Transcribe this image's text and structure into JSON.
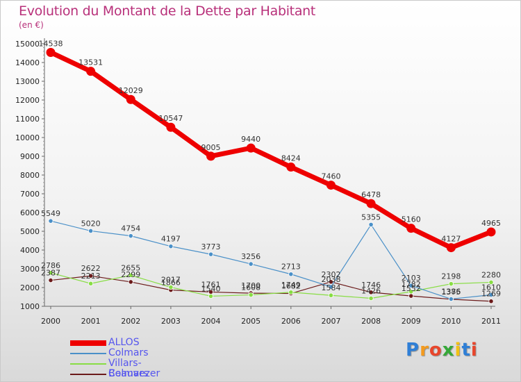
{
  "chart_data": {
    "type": "line",
    "title": "Evolution du Montant de la Dette par Habitant",
    "subtitle": "(en €)",
    "x": [
      "2000",
      "2001",
      "2002",
      "2003",
      "2004",
      "2005",
      "2006",
      "2007",
      "2008",
      "2009",
      "2010",
      "2011"
    ],
    "ylim": [
      1000,
      15000
    ],
    "yticks": [
      1000,
      2000,
      3000,
      4000,
      5000,
      6000,
      7000,
      8000,
      9000,
      10000,
      11000,
      12000,
      13000,
      14000,
      15000
    ],
    "grid": false,
    "legend_position": "bottom-left",
    "series": [
      {
        "name": "ALLOS",
        "color": "#ee0000",
        "values": [
          14538,
          13531,
          12029,
          10547,
          9005,
          9440,
          8424,
          7460,
          6478,
          5160,
          4127,
          4965
        ],
        "labels": [
          "14538",
          "13531",
          "12029",
          "10547",
          "9005",
          "9440",
          "8424",
          "7460",
          "6478",
          "5160",
          "4127",
          "4965"
        ]
      },
      {
        "name": "Colmars",
        "color": "#4a90c8",
        "values": [
          5549,
          5020,
          4754,
          4197,
          3773,
          3256,
          2713,
          2038,
          5355,
          2103,
          1386,
          1610
        ],
        "labels": [
          "5549",
          "5020",
          "4754",
          "4197",
          "3773",
          "3256",
          "2713",
          "2038",
          "5355",
          "2103",
          "1386",
          "1610"
        ]
      },
      {
        "name": "Villars-Colmars",
        "color": "#88dd44",
        "values": [
          2786,
          2213,
          2655,
          2017,
          1540,
          1608,
          1749,
          1584,
          1426,
          1782,
          2198,
          2280
        ],
        "labels": [
          "2786",
          "2213",
          "2655",
          "2017",
          "1540",
          "1608",
          "1749",
          "1584",
          "1426",
          "1782",
          "2198",
          "2280"
        ]
      },
      {
        "name": "Beauvezer",
        "color": "#6b1a1a",
        "values": [
          2387,
          2622,
          2299,
          1866,
          1761,
          1700,
          1682,
          2302,
          1746,
          1552,
          1375,
          1269
        ],
        "labels": [
          "2387",
          "2622",
          "2299",
          "1866",
          "1761",
          "1700",
          "1682",
          "2302",
          "1746",
          "1552",
          "1375",
          "1269"
        ]
      }
    ]
  },
  "logo": {
    "text": "Proxiti",
    "letters": [
      "P",
      "r",
      "o",
      "x",
      "i",
      "t",
      "i"
    ],
    "colors": [
      "#2f7fd6",
      "#f39a1e",
      "#e8462c",
      "#35a838",
      "#f2c114",
      "#2f7fd6",
      "#e8462c"
    ]
  }
}
